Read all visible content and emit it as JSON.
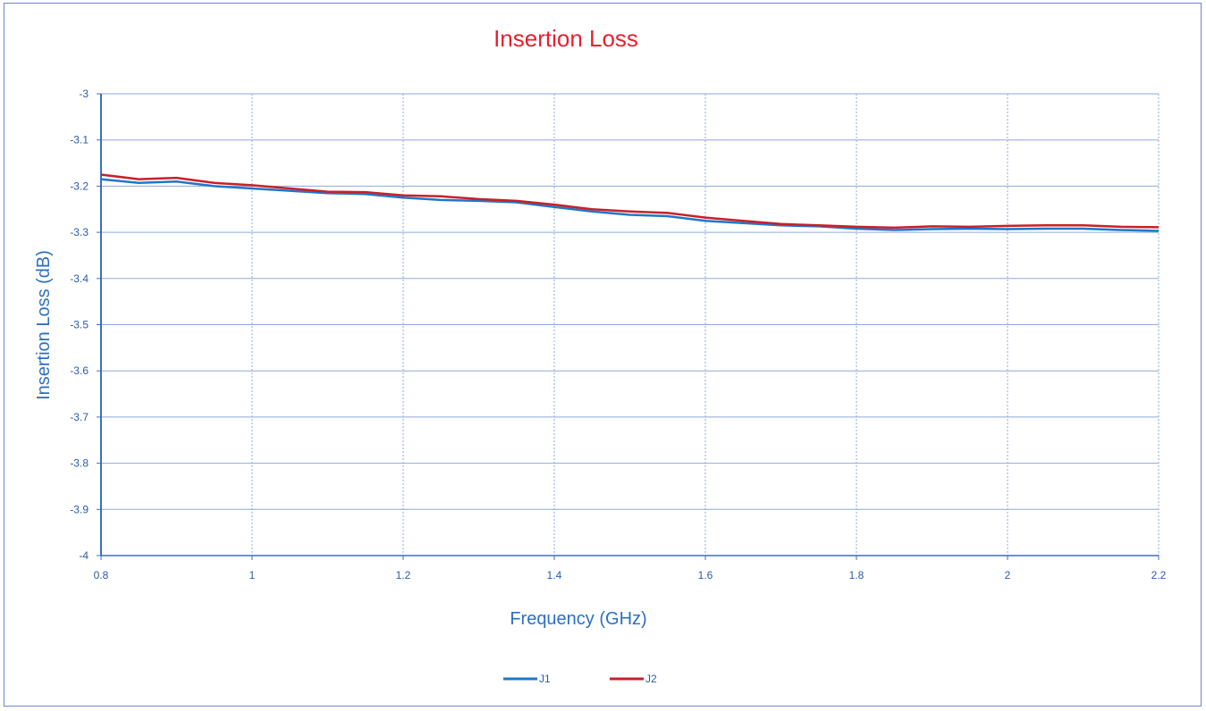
{
  "chart_data": {
    "type": "line",
    "title": "Insertion Loss",
    "xlabel": "Frequency (GHz)",
    "ylabel": "Insertion Loss (dB)",
    "xlim": [
      0.8,
      2.2
    ],
    "ylim": [
      -4,
      -3
    ],
    "x_ticks": [
      0.8,
      1,
      1.2,
      1.4,
      1.6,
      1.8,
      2,
      2.2
    ],
    "y_ticks": [
      -3,
      -3.1,
      -3.2,
      -3.3,
      -3.4,
      -3.5,
      -3.6,
      -3.7,
      -3.8,
      -3.9,
      -4
    ],
    "grid": true,
    "legend_position": "bottom",
    "x": [
      0.8,
      0.85,
      0.9,
      0.95,
      1.0,
      1.05,
      1.1,
      1.15,
      1.2,
      1.25,
      1.3,
      1.35,
      1.4,
      1.45,
      1.5,
      1.55,
      1.6,
      1.65,
      1.7,
      1.75,
      1.8,
      1.85,
      1.9,
      1.95,
      2.0,
      2.05,
      2.1,
      2.15,
      2.2
    ],
    "series": [
      {
        "name": "J1",
        "color": "#1f77c8",
        "values": [
          -3.185,
          -3.193,
          -3.19,
          -3.2,
          -3.205,
          -3.21,
          -3.215,
          -3.217,
          -3.225,
          -3.23,
          -3.232,
          -3.235,
          -3.245,
          -3.255,
          -3.262,
          -3.265,
          -3.275,
          -3.28,
          -3.285,
          -3.287,
          -3.292,
          -3.295,
          -3.293,
          -3.292,
          -3.293,
          -3.292,
          -3.292,
          -3.295,
          -3.297
        ]
      },
      {
        "name": "J2",
        "color": "#c8202a",
        "values": [
          -3.175,
          -3.185,
          -3.182,
          -3.193,
          -3.198,
          -3.205,
          -3.212,
          -3.213,
          -3.22,
          -3.222,
          -3.228,
          -3.232,
          -3.24,
          -3.25,
          -3.255,
          -3.258,
          -3.268,
          -3.275,
          -3.282,
          -3.285,
          -3.288,
          -3.29,
          -3.287,
          -3.288,
          -3.286,
          -3.285,
          -3.285,
          -3.288,
          -3.289
        ]
      }
    ]
  },
  "style": {
    "title_color": "#e8202e",
    "axis_label_color": "#2c6fc0",
    "tick_color": "#2c5aa8",
    "grid_color": "#8faadc",
    "axis_color": "#3b6fc2",
    "frame_color": "#6f86c9"
  }
}
